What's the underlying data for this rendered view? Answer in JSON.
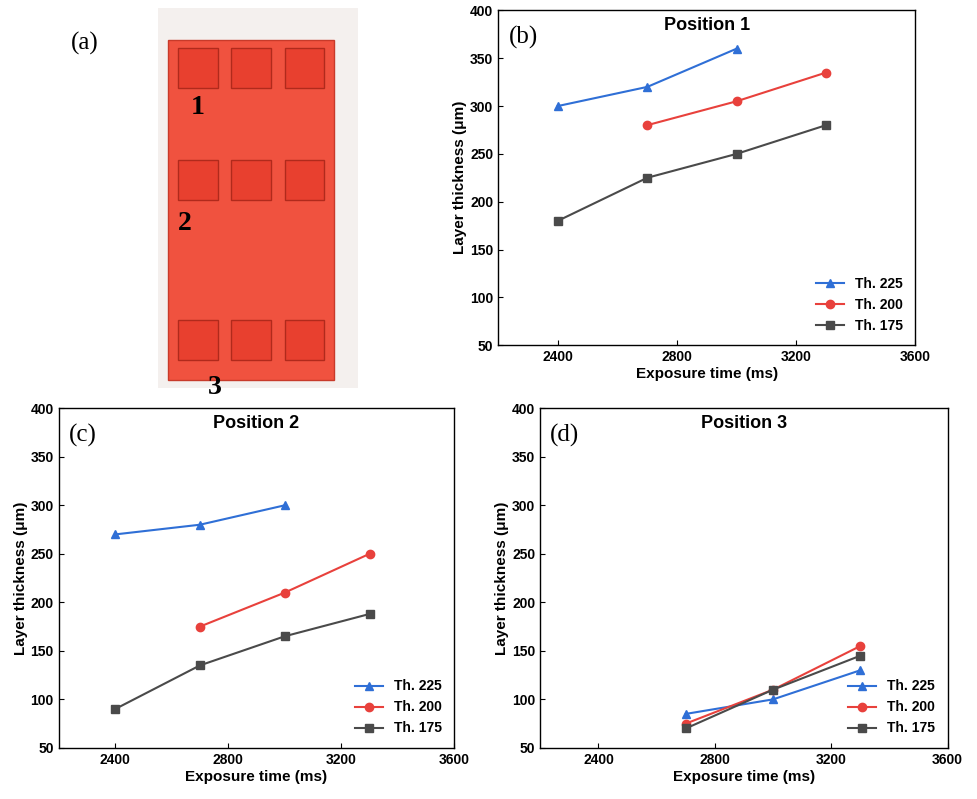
{
  "photo": {
    "panel_label": "(a)",
    "position_labels": [
      "1",
      "2",
      "3"
    ]
  },
  "chart_data": [
    {
      "type": "line",
      "panel_label": "(b)",
      "title": "Position 1",
      "x_label": "Exposure time (ms)",
      "y_label": "Layer thickness (μm)",
      "xlim": [
        2200,
        3600
      ],
      "xticks": [
        2400,
        2800,
        3200,
        3600
      ],
      "ylim": [
        50,
        400
      ],
      "yticks": [
        50,
        100,
        150,
        200,
        250,
        300,
        350,
        400
      ],
      "legend": "lower right",
      "series": [
        {
          "name": "Th. 225",
          "color": "#2f6fd6",
          "marker": "^",
          "x": [
            2400,
            2700,
            3000
          ],
          "values": [
            300,
            320,
            360
          ]
        },
        {
          "name": "Th. 200",
          "color": "#e8413c",
          "marker": "o",
          "x": [
            2700,
            3000,
            3300
          ],
          "values": [
            280,
            305,
            335
          ]
        },
        {
          "name": "Th. 175",
          "color": "#4a4a4a",
          "marker": "s",
          "x": [
            2400,
            2700,
            3000,
            3300
          ],
          "values": [
            180,
            225,
            250,
            280
          ]
        }
      ]
    },
    {
      "type": "line",
      "panel_label": "(c)",
      "title": "Position 2",
      "x_label": "Exposure time (ms)",
      "y_label": "Layer thickness (μm)",
      "xlim": [
        2200,
        3600
      ],
      "xticks": [
        2400,
        2800,
        3200,
        3600
      ],
      "ylim": [
        50,
        400
      ],
      "yticks": [
        50,
        100,
        150,
        200,
        250,
        300,
        350,
        400
      ],
      "legend": "lower right",
      "series": [
        {
          "name": "Th. 225",
          "color": "#2f6fd6",
          "marker": "^",
          "x": [
            2400,
            2700,
            3000
          ],
          "values": [
            270,
            280,
            300
          ]
        },
        {
          "name": "Th. 200",
          "color": "#e8413c",
          "marker": "o",
          "x": [
            2700,
            3000,
            3300
          ],
          "values": [
            175,
            210,
            250
          ]
        },
        {
          "name": "Th. 175",
          "color": "#4a4a4a",
          "marker": "s",
          "x": [
            2400,
            2700,
            3000,
            3300
          ],
          "values": [
            90,
            135,
            165,
            188
          ]
        }
      ]
    },
    {
      "type": "line",
      "panel_label": "(d)",
      "title": "Position 3",
      "x_label": "Exposure time (ms)",
      "y_label": "Layer thickness (μm)",
      "xlim": [
        2200,
        3600
      ],
      "xticks": [
        2400,
        2800,
        3200,
        3600
      ],
      "ylim": [
        50,
        400
      ],
      "yticks": [
        50,
        100,
        150,
        200,
        250,
        300,
        350,
        400
      ],
      "legend": "lower right",
      "series": [
        {
          "name": "Th. 225",
          "color": "#2f6fd6",
          "marker": "^",
          "x": [
            2700,
            3000,
            3300
          ],
          "values": [
            85,
            100,
            130
          ]
        },
        {
          "name": "Th. 200",
          "color": "#e8413c",
          "marker": "o",
          "x": [
            2700,
            3000,
            3300
          ],
          "values": [
            75,
            110,
            155
          ]
        },
        {
          "name": "Th. 175",
          "color": "#4a4a4a",
          "marker": "s",
          "x": [
            2700,
            3000,
            3300
          ],
          "values": [
            70,
            110,
            145
          ]
        }
      ]
    }
  ]
}
